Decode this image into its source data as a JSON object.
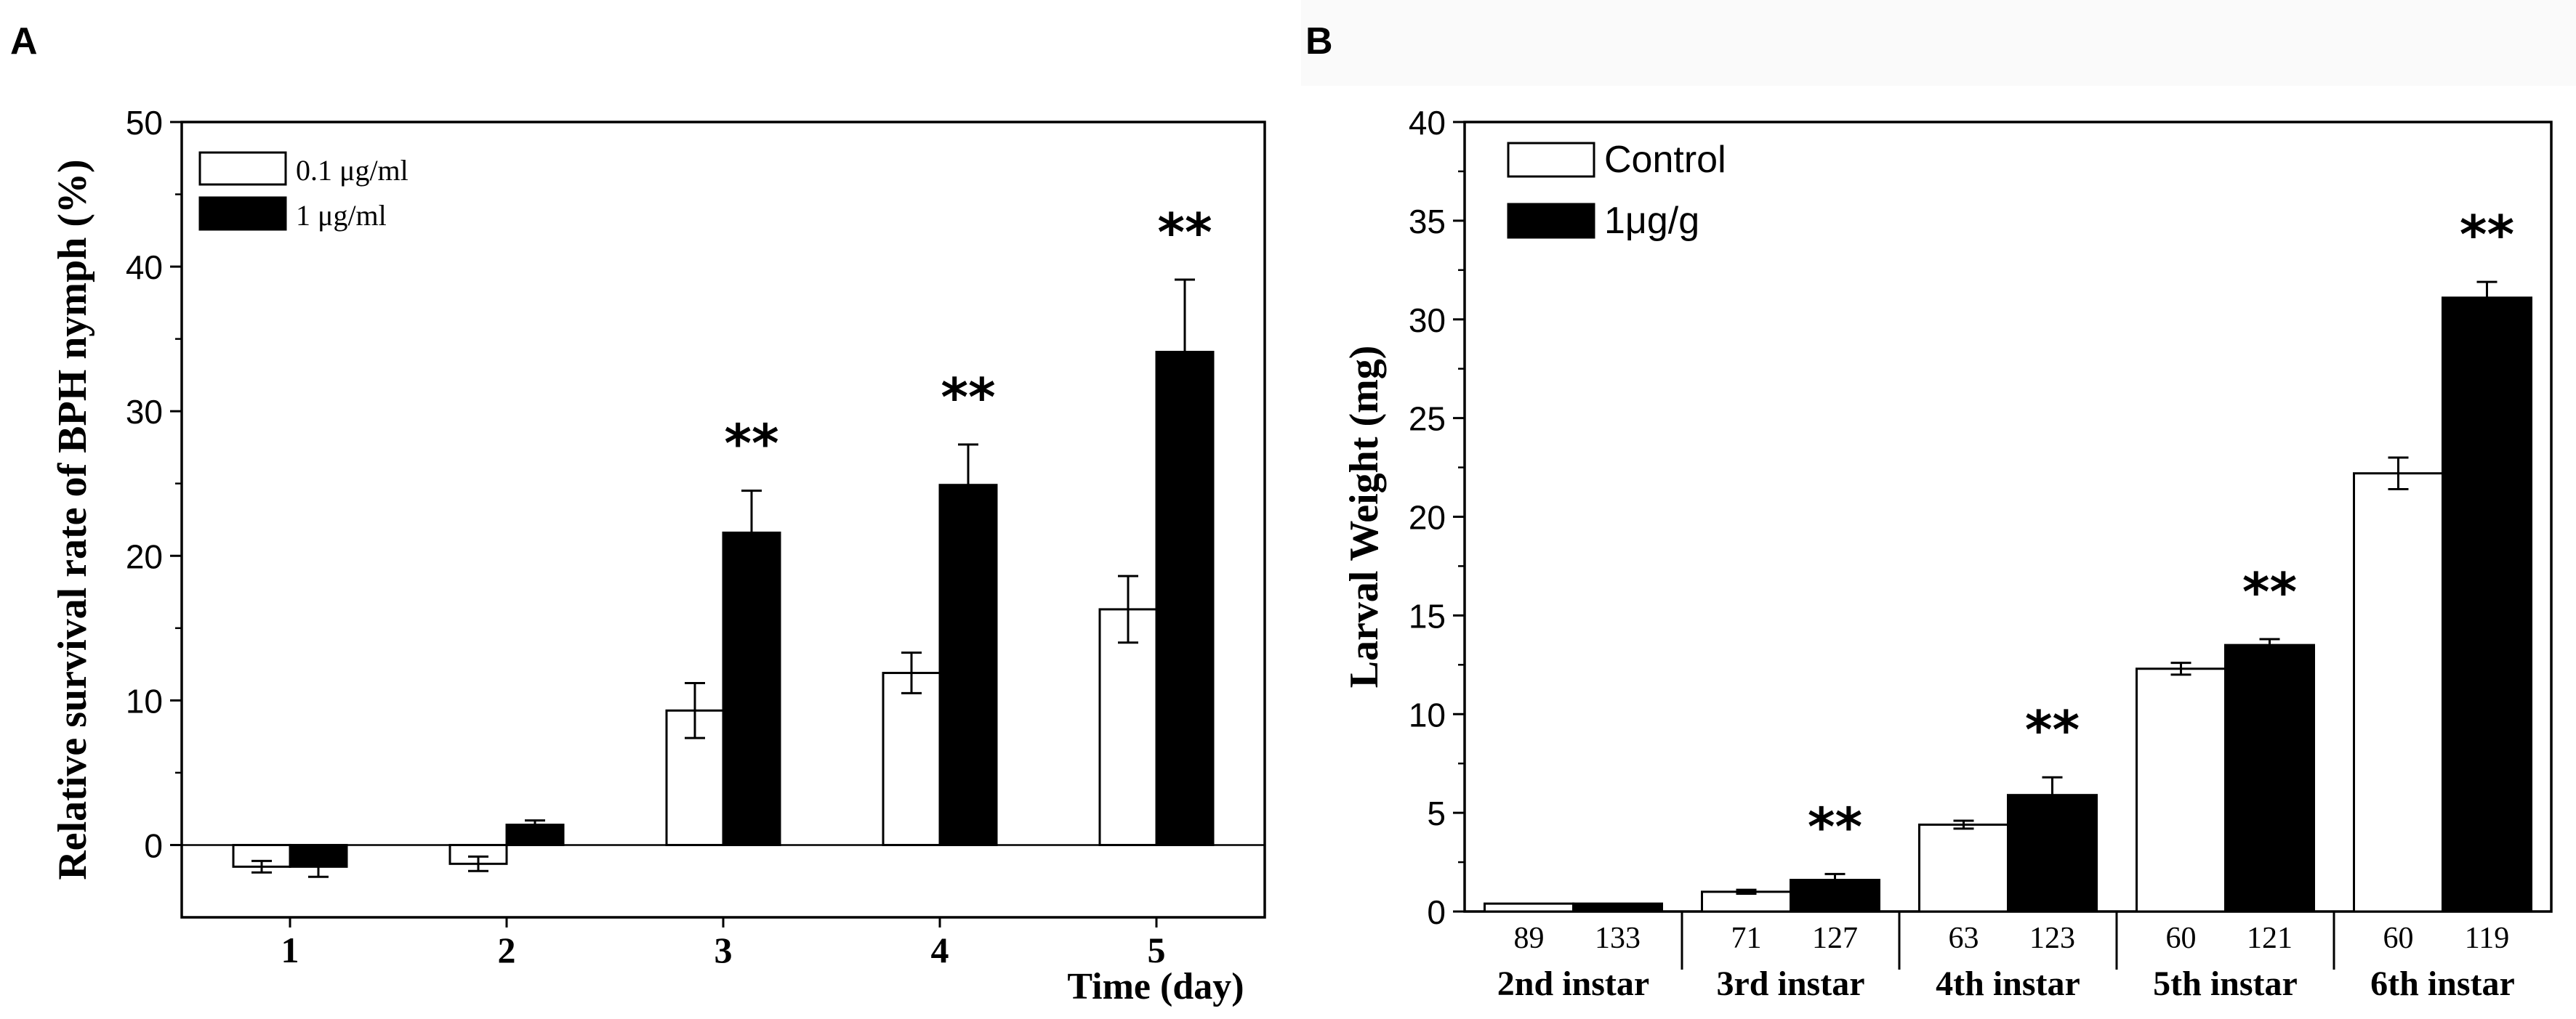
{
  "chart_data": [
    {
      "panel_label": "A",
      "type": "bar",
      "xlabel": "Time (day)",
      "ylabel": "Relative survival rate of BPH nymph (%)",
      "ylim": [
        -5,
        50
      ],
      "yticks": [
        "0",
        "10",
        "20",
        "30",
        "40",
        "50"
      ],
      "categories": [
        "1",
        "2",
        "3",
        "4",
        "5"
      ],
      "series": [
        {
          "name": "0.1  μg/ml",
          "color": "#ffffff",
          "values": [
            -1.5,
            -1.3,
            9.3,
            11.9,
            16.3
          ],
          "errors": [
            0.4,
            0.5,
            1.9,
            1.4,
            2.3
          ]
        },
        {
          "name": "1     μg/ml",
          "color": "#000000",
          "values": [
            -1.5,
            1.4,
            21.6,
            24.9,
            34.1
          ],
          "errors": [
            0.7,
            0.3,
            2.9,
            2.8,
            5.0
          ]
        }
      ],
      "annotations": [
        {
          "category": "3",
          "text": "**"
        },
        {
          "category": "4",
          "text": "**"
        },
        {
          "category": "5",
          "text": "**"
        }
      ],
      "legend_position": "top-left",
      "grid": false
    },
    {
      "panel_label": "B",
      "type": "bar",
      "xlabel": "",
      "ylabel": "Larval Weight (mg)",
      "ylim": [
        0,
        40
      ],
      "yticks": [
        "0",
        "5",
        "10",
        "15",
        "20",
        "25",
        "30",
        "35",
        "40"
      ],
      "categories": [
        "2nd instar",
        "3rd instar",
        "4th instar",
        "5th instar",
        "6th instar"
      ],
      "series": [
        {
          "name": "Control",
          "color": "#ffffff",
          "values": [
            0.4,
            1.0,
            4.4,
            12.3,
            22.2
          ],
          "errors": [
            0,
            0.1,
            0.2,
            0.3,
            0.8
          ],
          "counts": [
            "89",
            "71",
            "63",
            "60",
            "60"
          ]
        },
        {
          "name": "1μg/g",
          "color": "#000000",
          "values": [
            0.4,
            1.6,
            5.9,
            13.5,
            31.1
          ],
          "errors": [
            0,
            0.3,
            0.9,
            0.3,
            0.8
          ],
          "counts": [
            "133",
            "127",
            "123",
            "121",
            "119"
          ]
        }
      ],
      "annotations": [
        {
          "category": "3rd instar",
          "text": "**"
        },
        {
          "category": "4th instar",
          "text": "**"
        },
        {
          "category": "5th instar",
          "text": "**"
        },
        {
          "category": "6th instar",
          "text": "**"
        }
      ],
      "legend_position": "top-left",
      "grid": false
    }
  ]
}
